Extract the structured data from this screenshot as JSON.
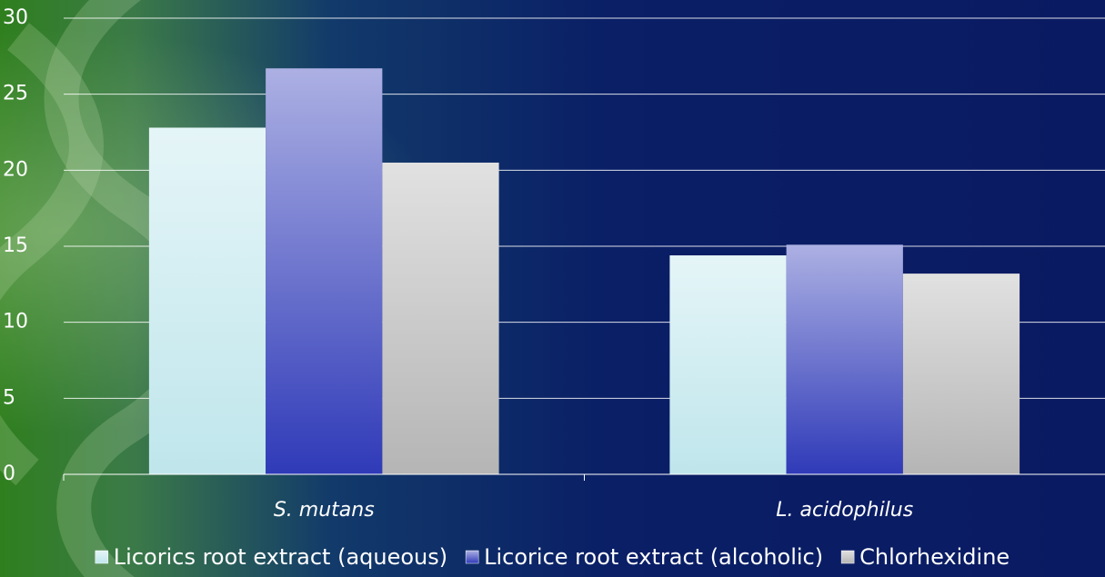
{
  "chart_data": {
    "type": "bar",
    "categories": [
      "S. mutans",
      "L. acidophilus"
    ],
    "series": [
      {
        "name": "Licorics root extract (aqueous)",
        "color": "#bfe6ec",
        "values": [
          22.8,
          14.4
        ]
      },
      {
        "name": "Licorice root extract (alcoholic)",
        "color": "#2f3ab8",
        "values": [
          26.7,
          15.1
        ]
      },
      {
        "name": "Chlorhexidine",
        "color": "#b5b5b5",
        "values": [
          20.5,
          13.2
        ]
      }
    ],
    "ylim": [
      0,
      30
    ],
    "yticks": [
      0,
      5,
      10,
      15,
      20,
      25,
      30
    ],
    "grid": true,
    "legend": "bottom"
  }
}
